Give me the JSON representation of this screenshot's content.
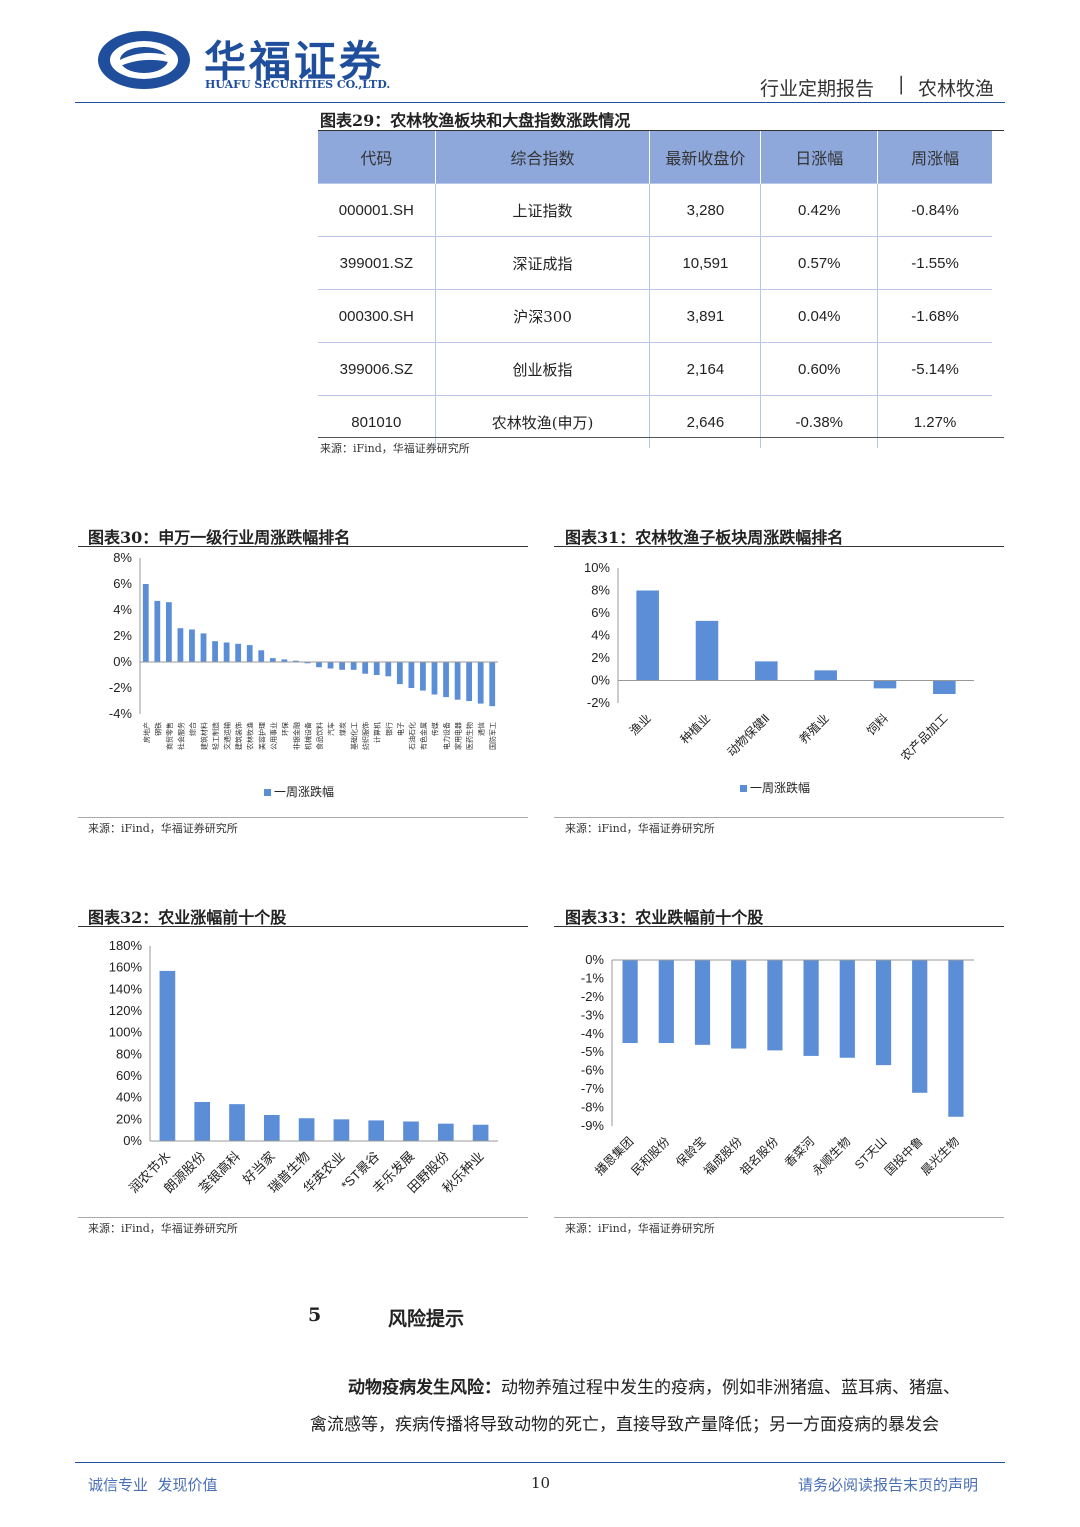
{
  "header": {
    "company_cn": "华福证券",
    "company_en": "HUAFU SECURITIES CO.,LTD.",
    "report_type": "行业定期报告",
    "sector": "农林牧渔",
    "sep": "|"
  },
  "table29": {
    "title": "图表29：农林牧渔板块和大盘指数涨跌情况",
    "headers": [
      "代码",
      "综合指数",
      "最新收盘价",
      "日涨幅",
      "周涨幅"
    ],
    "rows": [
      [
        "000001.SH",
        "上证指数",
        "3,280",
        "0.42%",
        "-0.84%"
      ],
      [
        "399001.SZ",
        "深证成指",
        "10,591",
        "0.57%",
        "-1.55%"
      ],
      [
        "000300.SH",
        "沪深300",
        "3,891",
        "0.04%",
        "-1.68%"
      ],
      [
        "399006.SZ",
        "创业板指",
        "2,164",
        "0.60%",
        "-5.14%"
      ],
      [
        "801010",
        "农林牧渔(申万)",
        "2,646",
        "-0.38%",
        "1.27%"
      ]
    ],
    "source": "来源：iFind，华福证券研究所"
  },
  "chart_data": [
    {
      "id": "fig30",
      "type": "bar",
      "title": "图表30：申万一级行业周涨跌幅排名",
      "source": "来源：iFind，华福证券研究所",
      "legend": "一周涨跌幅",
      "ylim": [
        -4,
        8
      ],
      "yticks": [
        "8%",
        "6%",
        "4%",
        "2%",
        "0%",
        "-2%",
        "-4%"
      ],
      "categories": [
        "房地产",
        "钢铁",
        "商贸零售",
        "社会服务",
        "综合",
        "建筑材料",
        "轻工制造",
        "交通运输",
        "建筑装饰",
        "农林牧渔",
        "美容护理",
        "公用事业",
        "环保",
        "非银金融",
        "机械设备",
        "食品饮料",
        "汽车",
        "煤炭",
        "基础化工",
        "纺织服饰",
        "计算机",
        "银行",
        "电子",
        "石油石化",
        "有色金属",
        "传媒",
        "电力设备",
        "家用电器",
        "医药生物",
        "通信",
        "国防军工"
      ],
      "values": [
        6.0,
        4.7,
        4.6,
        2.6,
        2.5,
        2.2,
        1.6,
        1.5,
        1.4,
        1.3,
        0.9,
        0.3,
        0.2,
        0.1,
        -0.1,
        -0.4,
        -0.5,
        -0.6,
        -0.6,
        -0.9,
        -1.0,
        -1.1,
        -1.7,
        -2.0,
        -2.2,
        -2.5,
        -2.7,
        -2.9,
        -3.0,
        -3.2,
        -3.4
      ]
    },
    {
      "id": "fig31",
      "type": "bar",
      "title": "图表31：农林牧渔子板块周涨跌幅排名",
      "source": "来源：iFind，华福证券研究所",
      "legend": "一周涨跌幅",
      "ylim": [
        -2,
        10
      ],
      "yticks": [
        "10%",
        "8%",
        "6%",
        "4%",
        "2%",
        "0%",
        "-2%"
      ],
      "categories": [
        "渔业",
        "种植业",
        "动物保健Ⅱ",
        "养殖业",
        "饲料",
        "农产品加工"
      ],
      "values": [
        8.0,
        5.3,
        1.7,
        0.9,
        -0.7,
        -1.2
      ]
    },
    {
      "id": "fig32",
      "type": "bar",
      "title": "图表32：农业涨幅前十个股",
      "source": "来源：iFind，华福证券研究所",
      "ylim": [
        0,
        180
      ],
      "yticks": [
        "180%",
        "160%",
        "140%",
        "120%",
        "100%",
        "80%",
        "60%",
        "40%",
        "20%",
        "0%"
      ],
      "categories": [
        "润农节水",
        "朗源股份",
        "荃银高科",
        "好当家",
        "瑞普生物",
        "华英农业",
        "*ST景谷",
        "丰乐发展",
        "田野股份",
        "秋乐种业"
      ],
      "values": [
        157,
        36,
        34,
        24,
        21,
        20,
        19,
        18,
        16,
        15
      ]
    },
    {
      "id": "fig33",
      "type": "bar",
      "title": "图表33：农业跌幅前十个股",
      "source": "来源：iFind，华福证券研究所",
      "ylim": [
        -9,
        0
      ],
      "yticks": [
        "0%",
        "-1%",
        "-2%",
        "-3%",
        "-4%",
        "-5%",
        "-6%",
        "-7%",
        "-8%",
        "-9%"
      ],
      "categories": [
        "播恩集团",
        "民和股份",
        "保龄宝",
        "福成股份",
        "祖名股份",
        "香菜河",
        "永顺生物",
        "ST天山",
        "国投中鲁",
        "晨光生物"
      ],
      "values": [
        -4.5,
        -4.5,
        -4.6,
        -4.8,
        -4.9,
        -5.2,
        -5.3,
        -5.7,
        -7.2,
        -8.5
      ]
    }
  ],
  "section": {
    "number": "5",
    "title": "风险提示"
  },
  "body": {
    "lead": "动物疫病发生风险：",
    "text1": "动物养殖过程中发生的疫病，例如非洲猪瘟、蓝耳病、猪瘟、",
    "text2": "禽流感等，疾病传播将导致动物的死亡，直接导致产量降低；另一方面疫病的暴发会"
  },
  "footer": {
    "left": "诚信专业  发现价值",
    "page": "10",
    "right": "请务必阅读报告末页的声明"
  },
  "colors": {
    "bar": "#5b8ed6",
    "header": "#8fa8dc",
    "brand": "#1f4e9c"
  }
}
